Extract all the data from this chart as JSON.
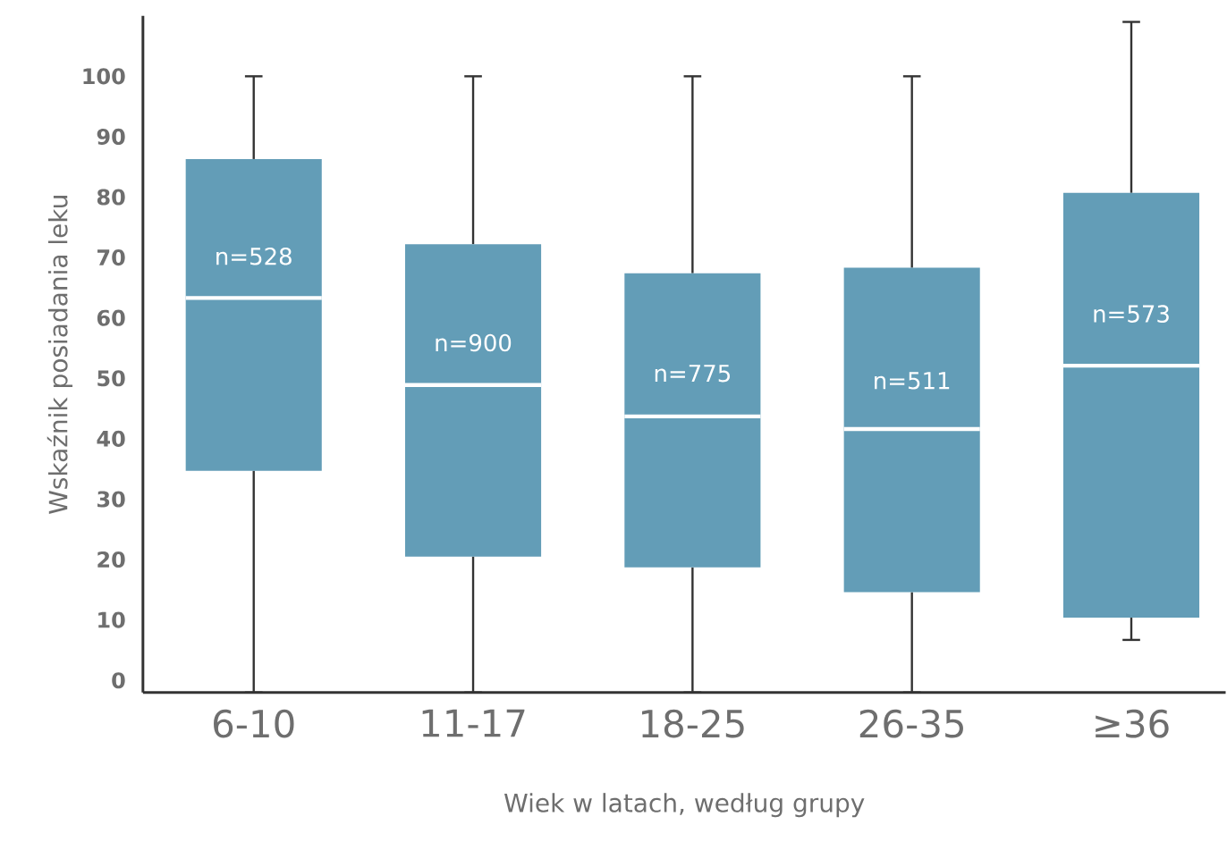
{
  "chart_data": {
    "type": "box",
    "xlabel": "Wiek w latach, według grupy",
    "ylabel": "Wskaźnik posiadania leku",
    "categories": [
      "6-10",
      "11-17",
      "18-25",
      "26-35",
      "≥36"
    ],
    "color": "#639db7",
    "boxes": [
      {
        "low": -2,
        "q1": 34.7,
        "median": 63.3,
        "q3": 86.3,
        "high": 100
      },
      {
        "low": -2,
        "q1": 20.5,
        "median": 48.9,
        "q3": 72.2,
        "high": 100
      },
      {
        "low": -2,
        "q1": 18.7,
        "median": 43.7,
        "q3": 67.4,
        "high": 100
      },
      {
        "low": -2,
        "q1": 14.6,
        "median": 41.6,
        "q3": 68.3,
        "high": 100
      },
      {
        "low": 6.7,
        "q1": 10.4,
        "median": 52.1,
        "q3": 80.7,
        "high": 109
      }
    ],
    "ylim": [
      -2,
      110
    ],
    "yticks": [
      0,
      10,
      20,
      30,
      40,
      50,
      60,
      70,
      80,
      90,
      100
    ],
    "annotations": [
      "n=528",
      "n=900",
      "n=775",
      "n=511",
      "n=573"
    ]
  }
}
